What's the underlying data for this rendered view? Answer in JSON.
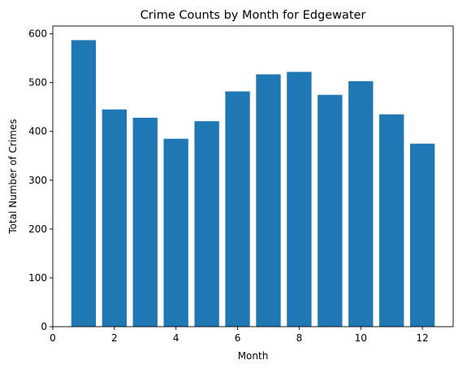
{
  "chart_data": {
    "type": "bar",
    "title": "Crime Counts by Month for Edgewater",
    "xlabel": "Month",
    "ylabel": "Total Number of Crimes",
    "categories": [
      1,
      2,
      3,
      4,
      5,
      6,
      7,
      8,
      9,
      10,
      11,
      12
    ],
    "values": [
      587,
      445,
      428,
      385,
      421,
      482,
      517,
      522,
      475,
      503,
      435,
      375
    ],
    "xlim": [
      0,
      13
    ],
    "ylim": [
      0,
      616
    ],
    "xticks": [
      0,
      2,
      4,
      6,
      8,
      10,
      12
    ],
    "yticks": [
      0,
      100,
      200,
      300,
      400,
      500,
      600
    ],
    "bar_width": 0.8,
    "bar_color": "#1f77b4",
    "grid": false,
    "legend": "none"
  }
}
